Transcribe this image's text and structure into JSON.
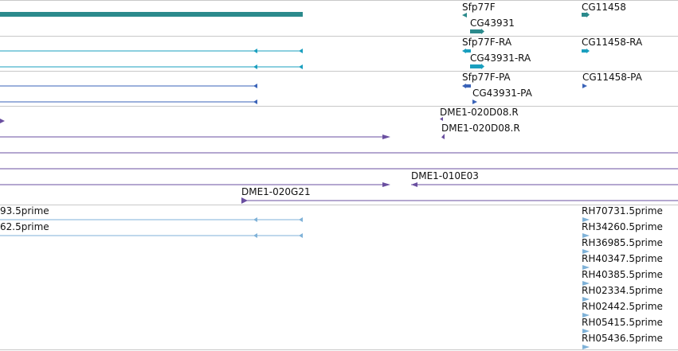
{
  "colors": {
    "gene": "#2b8a8c",
    "mrna_cyan": "#1a9fbf",
    "protein_blue": "#3a63b8",
    "dme_purple": "#6a4fa0",
    "est_lightblue": "#7fb2d8",
    "separator": "#c8c8c8"
  },
  "tracks": {
    "gene": {
      "labels": {
        "sfp77f": "Sfp77F",
        "cg43931": "CG43931",
        "cg11458": "CG11458"
      }
    },
    "mrna": {
      "labels": {
        "sfp77f_ra": "Sfp77F-RA",
        "cg43931_ra": "CG43931-RA",
        "cg11458_ra": "CG11458-RA"
      }
    },
    "protein": {
      "labels": {
        "sfp77f_pa": "Sfp77F-PA",
        "cg43931_pa": "CG43931-PA",
        "cg11458_pa": "CG11458-PA"
      }
    },
    "dme": {
      "labels": {
        "r1": "DME1-020D08.R",
        "r2": "DME1-020D08.R",
        "e03": "DME1-010E03",
        "g21": "DME1-020G21"
      }
    },
    "est": {
      "left_labels": [
        "93.5prime",
        "62.5prime"
      ],
      "right_labels": [
        "RH70731.5prime",
        "RH34260.5prime",
        "RH36985.5prime",
        "RH40347.5prime",
        "RH40385.5prime",
        "RH02334.5prime",
        "RH02442.5prime",
        "RH05415.5prime",
        "RH05436.5prime"
      ]
    }
  }
}
